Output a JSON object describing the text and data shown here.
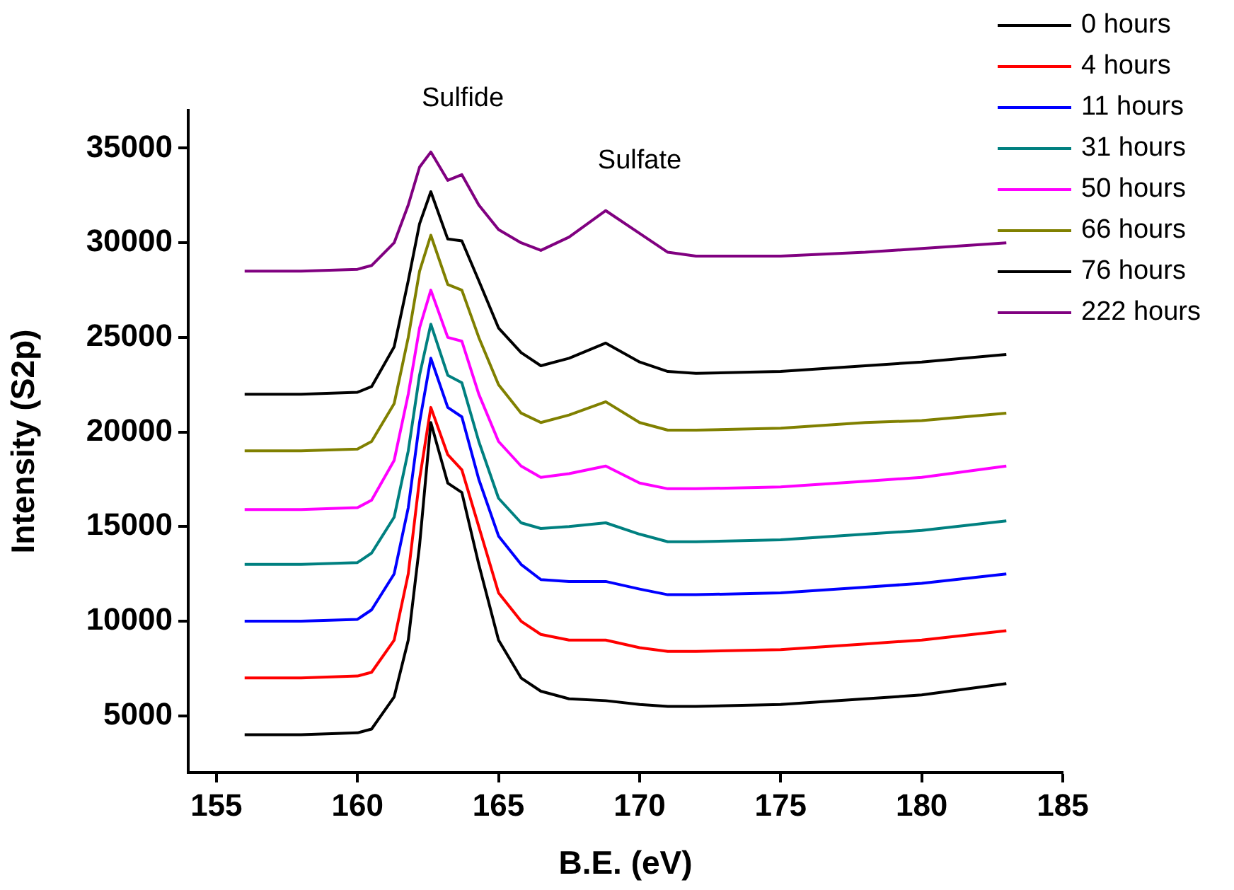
{
  "chart_data": {
    "type": "line",
    "xlabel": "B.E. (eV)",
    "ylabel": "Intensity (S2p)",
    "annotations": [
      "Sulfide",
      "Sulfate"
    ],
    "x": [
      156,
      158,
      160,
      160.5,
      161.3,
      161.8,
      162.2,
      162.6,
      163.2,
      163.7,
      164.3,
      165,
      165.8,
      166.5,
      167.5,
      168.8,
      170,
      171,
      172,
      175,
      178,
      180,
      183
    ],
    "xlim": [
      154,
      185
    ],
    "xticks": [
      155,
      160,
      165,
      170,
      175,
      180,
      185
    ],
    "ylim": [
      2000,
      37000
    ],
    "yticks": [
      5000,
      10000,
      15000,
      20000,
      25000,
      30000,
      35000
    ],
    "grid": false,
    "legend": "top right",
    "marker": "none",
    "line_style": "solid",
    "series": [
      {
        "name": "0 hours",
        "color": "#000000",
        "values": [
          4000,
          4000,
          4100,
          4300,
          6000,
          9000,
          14000,
          20500,
          17300,
          16800,
          13000,
          9000,
          7000,
          6300,
          5900,
          5800,
          5600,
          5500,
          5500,
          5600,
          5900,
          6100,
          6700
        ]
      },
      {
        "name": "4 hours",
        "color": "#ff0000",
        "values": [
          7000,
          7000,
          7100,
          7300,
          9000,
          12500,
          17500,
          21300,
          18800,
          18000,
          15000,
          11500,
          10000,
          9300,
          9000,
          9000,
          8600,
          8400,
          8400,
          8500,
          8800,
          9000,
          9500
        ]
      },
      {
        "name": "11 hours",
        "color": "#0000ff",
        "values": [
          10000,
          10000,
          10100,
          10600,
          12500,
          16000,
          20500,
          23900,
          21300,
          20800,
          17500,
          14500,
          13000,
          12200,
          12100,
          12100,
          11700,
          11400,
          11400,
          11500,
          11800,
          12000,
          12500
        ]
      },
      {
        "name": "31 hours",
        "color": "#008080",
        "values": [
          13000,
          13000,
          13100,
          13600,
          15500,
          19000,
          23000,
          25700,
          23000,
          22600,
          19500,
          16500,
          15200,
          14900,
          15000,
          15200,
          14600,
          14200,
          14200,
          14300,
          14600,
          14800,
          15300
        ]
      },
      {
        "name": "50 hours",
        "color": "#ff00ff",
        "values": [
          15900,
          15900,
          16000,
          16400,
          18500,
          22000,
          25500,
          27500,
          25000,
          24800,
          22000,
          19500,
          18200,
          17600,
          17800,
          18200,
          17300,
          17000,
          17000,
          17100,
          17400,
          17600,
          18200
        ]
      },
      {
        "name": "66 hours",
        "color": "#808000",
        "values": [
          19000,
          19000,
          19100,
          19500,
          21500,
          25000,
          28500,
          30400,
          27800,
          27500,
          25000,
          22500,
          21000,
          20500,
          20900,
          21600,
          20500,
          20100,
          20100,
          20200,
          20500,
          20600,
          21000
        ]
      },
      {
        "name": "76 hours",
        "color": "#000000",
        "values": [
          22000,
          22000,
          22100,
          22400,
          24500,
          28000,
          31000,
          32700,
          30200,
          30100,
          28000,
          25500,
          24200,
          23500,
          23900,
          24700,
          23700,
          23200,
          23100,
          23200,
          23500,
          23700,
          24100
        ]
      },
      {
        "name": "222 hours",
        "color": "#800080",
        "values": [
          28500,
          28500,
          28600,
          28800,
          30000,
          32000,
          34000,
          34800,
          33300,
          33600,
          32000,
          30700,
          30000,
          29600,
          30300,
          31700,
          30500,
          29500,
          29300,
          29300,
          29500,
          29700,
          30000
        ]
      }
    ]
  }
}
